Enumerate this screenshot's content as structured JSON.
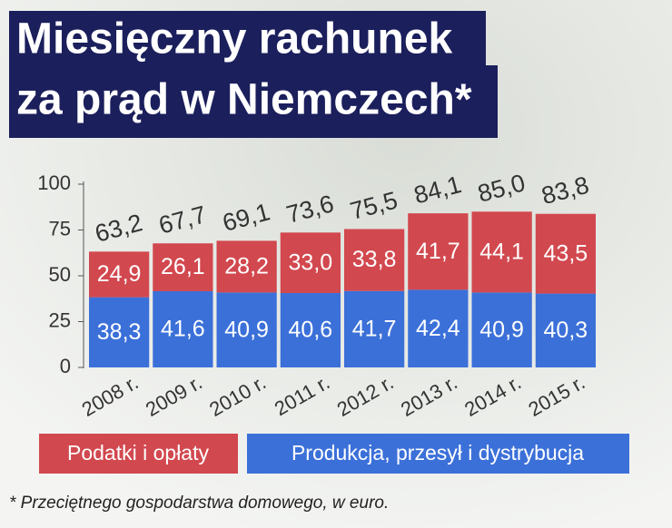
{
  "chart_data": {
    "type": "stacked-bar",
    "title": [
      "Miesięczny rachunek",
      "za prąd w Niemczech*"
    ],
    "categories": [
      "2008 r.",
      "2009 r.",
      "2010 r.",
      "2011 r.",
      "2012 r.",
      "2013 r.",
      "2014 r.",
      "2015 r."
    ],
    "series": [
      {
        "name": "Produkcja, przesył i dystrybucja",
        "color": "#3b70d9",
        "values": [
          38.3,
          41.6,
          40.9,
          40.6,
          41.7,
          42.4,
          40.9,
          40.3
        ],
        "value_labels": [
          "38,3",
          "41,6",
          "40,9",
          "40,6",
          "41,7",
          "42,4",
          "40,9",
          "40,3"
        ]
      },
      {
        "name": "Podatki i opłaty",
        "color": "#d2484f",
        "values": [
          24.9,
          26.1,
          28.2,
          33.0,
          33.8,
          41.7,
          44.1,
          43.5
        ],
        "value_labels": [
          "24,9",
          "26,1",
          "28,2",
          "33,0",
          "33,8",
          "41,7",
          "44,1",
          "43,5"
        ]
      }
    ],
    "totals": [
      63.2,
      67.7,
      69.1,
      73.6,
      75.5,
      84.1,
      85.0,
      83.8
    ],
    "total_labels": [
      "63,2",
      "67,7",
      "69,1",
      "73,6",
      "75,5",
      "84,1",
      "85,0",
      "83,8"
    ],
    "ylim": [
      0,
      100
    ],
    "yticks": [
      0,
      25,
      50,
      75,
      100
    ],
    "footnote": "* Przeciętnego gospodarstwa domowego, w euro."
  }
}
